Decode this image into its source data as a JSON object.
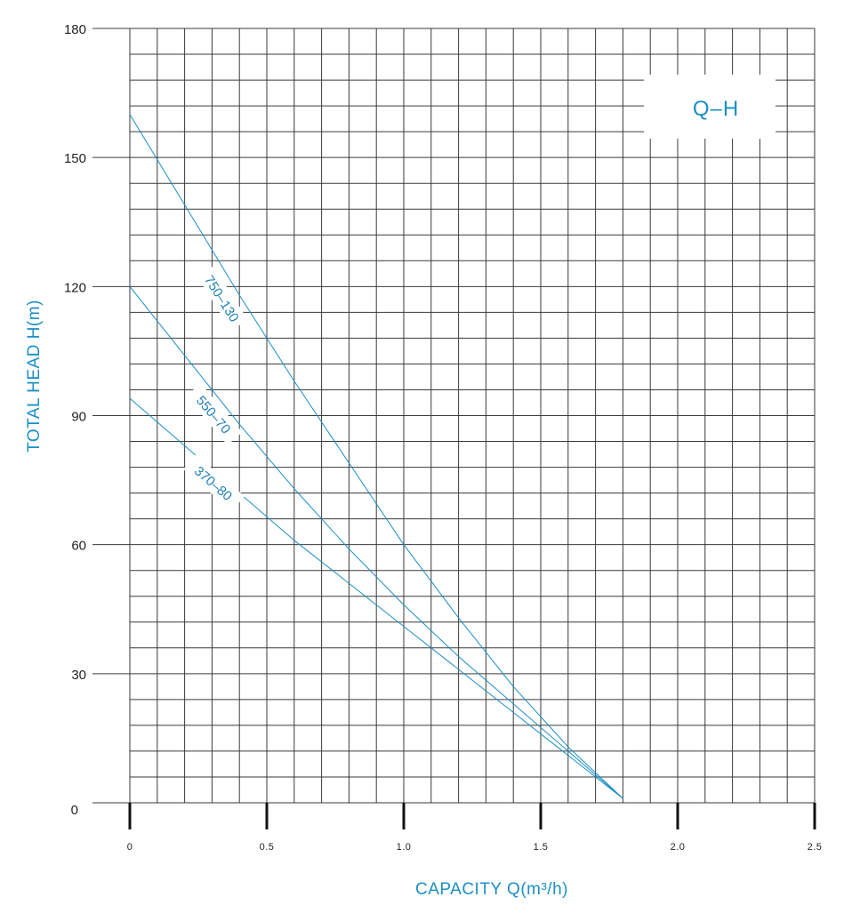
{
  "chart_data": {
    "type": "line",
    "title": "Q–H",
    "xlabel": "CAPACITY Q(m³/h)",
    "ylabel": "TOTAL HEAD H(m)",
    "xlim": [
      0,
      2.5
    ],
    "ylim": [
      0,
      180
    ],
    "x_ticks": [
      "0",
      "0.5",
      "1.0",
      "1.5",
      "2.0",
      "2.5"
    ],
    "y_ticks": [
      "0",
      "30",
      "60",
      "90",
      "120",
      "150",
      "180"
    ],
    "grid": true,
    "series_color": "#1a8fc4",
    "series": [
      {
        "name": "750–130",
        "x": [
          0,
          0.2,
          0.4,
          0.6,
          0.8,
          1.0,
          1.2,
          1.4,
          1.6,
          1.8
        ],
        "y": [
          160,
          139,
          118,
          98,
          79,
          60,
          43,
          27,
          13,
          1
        ]
      },
      {
        "name": "550–70",
        "x": [
          0,
          0.2,
          0.4,
          0.6,
          0.8,
          1.0,
          1.2,
          1.4,
          1.6,
          1.8
        ],
        "y": [
          120,
          104,
          88,
          73,
          59,
          46,
          34,
          23,
          12,
          1
        ]
      },
      {
        "name": "370–80",
        "x": [
          0,
          0.2,
          0.4,
          0.6,
          0.8,
          1.0,
          1.2,
          1.4,
          1.6,
          1.8
        ],
        "y": [
          94,
          83,
          72,
          61,
          51,
          41,
          31,
          21,
          11,
          1
        ]
      }
    ]
  }
}
